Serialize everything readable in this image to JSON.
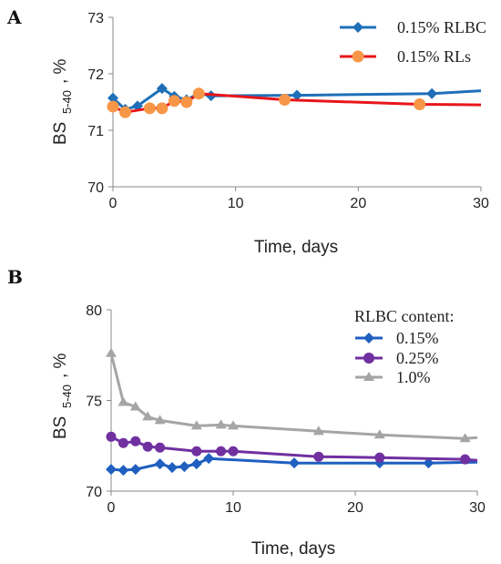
{
  "chart_data": [
    {
      "panel": "A",
      "type": "line",
      "ylabel": "BS",
      "ylabel_sub": "5-40",
      "ylabel_unit": ", %",
      "xlabel": "Time, days",
      "xlim": [
        0,
        30
      ],
      "ylim": [
        70,
        73
      ],
      "xticks": [
        "0",
        "10",
        "20",
        "30"
      ],
      "yticks": [
        "70",
        "71",
        "72",
        "73"
      ],
      "grid": false,
      "legend_position": "top-right",
      "legend_title": "",
      "series": [
        {
          "name": "0.15% RLBC",
          "color": "#1f6fb8",
          "marker": "diamond",
          "points": [
            [
              0,
              71.57
            ],
            [
              1,
              71.37
            ],
            [
              2,
              71.43
            ],
            [
              4,
              71.74
            ],
            [
              5,
              71.6
            ],
            [
              6,
              71.54
            ],
            [
              7,
              71.65
            ],
            [
              8,
              71.61
            ],
            [
              15,
              71.62
            ],
            [
              26,
              71.65
            ]
          ],
          "line": [
            [
              0,
              71.57
            ],
            [
              1,
              71.37
            ],
            [
              2,
              71.43
            ],
            [
              4,
              71.74
            ],
            [
              5,
              71.6
            ],
            [
              6,
              71.54
            ],
            [
              7,
              71.65
            ],
            [
              8,
              71.61
            ],
            [
              15,
              71.62
            ],
            [
              26,
              71.65
            ],
            [
              30,
              71.7
            ]
          ]
        },
        {
          "name": "0.15% RLs",
          "color": "#e8151b",
          "marker_color": "#f79646",
          "marker": "circle",
          "points": [
            [
              0,
              71.42
            ],
            [
              1,
              71.32
            ],
            [
              3,
              71.39
            ],
            [
              4,
              71.39
            ],
            [
              5,
              71.52
            ],
            [
              6,
              71.5
            ],
            [
              7,
              71.65
            ],
            [
              14,
              71.54
            ],
            [
              25,
              71.46
            ]
          ],
          "line": [
            [
              0,
              71.42
            ],
            [
              1,
              71.32
            ],
            [
              3,
              71.39
            ],
            [
              4,
              71.39
            ],
            [
              5,
              71.52
            ],
            [
              6,
              71.5
            ],
            [
              7,
              71.65
            ],
            [
              14,
              71.54
            ],
            [
              25,
              71.46
            ],
            [
              30,
              71.45
            ]
          ]
        }
      ]
    },
    {
      "panel": "B",
      "type": "line",
      "ylabel": "BS",
      "ylabel_sub": "5-40",
      "ylabel_unit": ", %",
      "xlabel": "Time, days",
      "xlim": [
        0,
        30
      ],
      "ylim": [
        70,
        80
      ],
      "xticks": [
        "0",
        "10",
        "20",
        "30"
      ],
      "yticks": [
        "70",
        "75",
        "80"
      ],
      "grid": false,
      "legend_position": "top-right",
      "legend_title": "RLBC content:",
      "series": [
        {
          "name": "0.15%",
          "color": "#1f5fc0",
          "marker": "diamond",
          "points": [
            [
              0,
              71.2
            ],
            [
              1,
              71.15
            ],
            [
              2,
              71.2
            ],
            [
              4,
              71.5
            ],
            [
              5,
              71.3
            ],
            [
              6,
              71.35
            ],
            [
              7,
              71.5
            ],
            [
              8,
              71.8
            ],
            [
              15,
              71.55
            ],
            [
              22,
              71.55
            ],
            [
              26,
              71.55
            ]
          ],
          "line": [
            [
              0,
              71.2
            ],
            [
              1,
              71.15
            ],
            [
              2,
              71.2
            ],
            [
              4,
              71.5
            ],
            [
              5,
              71.3
            ],
            [
              6,
              71.35
            ],
            [
              7,
              71.5
            ],
            [
              8,
              71.8
            ],
            [
              15,
              71.55
            ],
            [
              22,
              71.55
            ],
            [
              26,
              71.55
            ],
            [
              30,
              71.6
            ]
          ]
        },
        {
          "name": "0.25%",
          "color": "#7030a0",
          "marker": "circle",
          "points": [
            [
              0,
              73.0
            ],
            [
              1,
              72.65
            ],
            [
              2,
              72.75
            ],
            [
              3,
              72.45
            ],
            [
              4,
              72.4
            ],
            [
              7,
              72.2
            ],
            [
              9,
              72.2
            ],
            [
              10,
              72.2
            ],
            [
              17,
              71.9
            ],
            [
              22,
              71.85
            ],
            [
              29,
              71.75
            ]
          ],
          "line": [
            [
              0,
              73.0
            ],
            [
              1,
              72.65
            ],
            [
              2,
              72.75
            ],
            [
              3,
              72.45
            ],
            [
              4,
              72.4
            ],
            [
              7,
              72.2
            ],
            [
              9,
              72.2
            ],
            [
              10,
              72.2
            ],
            [
              17,
              71.9
            ],
            [
              22,
              71.85
            ],
            [
              29,
              71.75
            ],
            [
              30,
              71.7
            ]
          ]
        },
        {
          "name": "1.0%",
          "color": "#a5a5a5",
          "marker": "triangle",
          "points": [
            [
              0,
              77.6
            ],
            [
              1,
              74.9
            ],
            [
              2,
              74.65
            ],
            [
              3,
              74.1
            ],
            [
              4,
              73.9
            ],
            [
              7,
              73.6
            ],
            [
              9,
              73.65
            ],
            [
              10,
              73.6
            ],
            [
              17,
              73.3
            ],
            [
              22,
              73.1
            ],
            [
              29,
              72.9
            ]
          ],
          "line": [
            [
              0,
              77.6
            ],
            [
              1,
              74.9
            ],
            [
              2,
              74.65
            ],
            [
              3,
              74.1
            ],
            [
              4,
              73.9
            ],
            [
              7,
              73.6
            ],
            [
              9,
              73.65
            ],
            [
              10,
              73.6
            ],
            [
              17,
              73.3
            ],
            [
              22,
              73.1
            ],
            [
              29,
              72.9
            ],
            [
              30,
              72.95
            ]
          ]
        }
      ]
    }
  ]
}
